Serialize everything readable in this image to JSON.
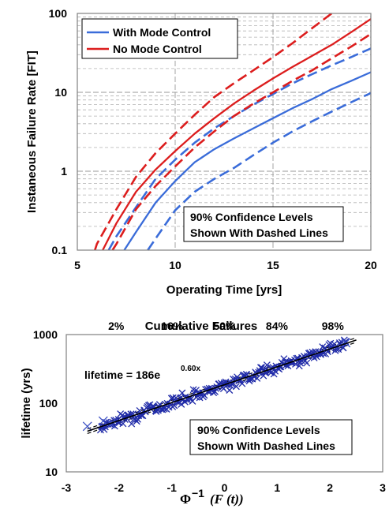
{
  "chart_data": [
    {
      "type": "line",
      "xlabel": "Operating Time [yrs]",
      "ylabel": "Instaneous Failure Rate [FIT]",
      "xlim": [
        5,
        20
      ],
      "ylim": [
        0.1,
        100
      ],
      "yscale": "log",
      "x_ticks": [
        "5",
        "10",
        "15",
        "20"
      ],
      "y_ticks": [
        "0.1",
        "1",
        "10",
        "100"
      ],
      "grid": true,
      "legend_position": "top-left",
      "annotation": [
        "90% Confidence Levels",
        "Shown With Dashed Lines"
      ],
      "series": [
        {
          "name": "With Mode Control",
          "color": "#3a6cd9",
          "style": "solid",
          "x": [
            7.4,
            8,
            9,
            10,
            11,
            12,
            13,
            14,
            15,
            16,
            17,
            18,
            19,
            20
          ],
          "y": [
            0.1,
            0.17,
            0.4,
            0.75,
            1.3,
            1.9,
            2.6,
            3.5,
            4.7,
            6.3,
            8.2,
            11,
            14,
            18
          ]
        },
        {
          "name": "With Mode Control upper 90% bound",
          "color": "#3a6cd9",
          "style": "dashed",
          "x": [
            6.6,
            7,
            8,
            9,
            10,
            11,
            12,
            13,
            14,
            15,
            16,
            17,
            18,
            19,
            20
          ],
          "y": [
            0.1,
            0.15,
            0.35,
            0.8,
            1.4,
            2.3,
            3.5,
            5,
            7,
            9.5,
            13,
            17,
            22,
            28,
            36
          ]
        },
        {
          "name": "With Mode Control lower 90% bound",
          "color": "#3a6cd9",
          "style": "dashed",
          "x": [
            8.6,
            9,
            10,
            11,
            12,
            13,
            14,
            15,
            16,
            17,
            18,
            19,
            20
          ],
          "y": [
            0.1,
            0.14,
            0.32,
            0.55,
            0.8,
            1.1,
            1.6,
            2.3,
            3.2,
            4.3,
            5.7,
            7.5,
            9.8
          ]
        },
        {
          "name": "No Mode Control",
          "color": "#dc1d1d",
          "style": "solid",
          "x": [
            6.3,
            7,
            8,
            9,
            10,
            11,
            12,
            13,
            14,
            15,
            16,
            17,
            18,
            19,
            20
          ],
          "y": [
            0.1,
            0.22,
            0.55,
            1.05,
            1.8,
            3,
            4.7,
            7.2,
            10.5,
            15,
            21,
            29,
            40,
            58,
            85
          ]
        },
        {
          "name": "No Mode Control upper 90% bound",
          "color": "#dc1d1d",
          "style": "dashed",
          "x": [
            5.9,
            6,
            7,
            8,
            9,
            10,
            11,
            12,
            13,
            14,
            15,
            16,
            17,
            18
          ],
          "y": [
            0.1,
            0.12,
            0.33,
            0.85,
            1.7,
            3,
            5.2,
            8.7,
            13,
            19,
            28,
            42,
            65,
            100
          ]
        },
        {
          "name": "No Mode Control lower 90% bound",
          "color": "#dc1d1d",
          "style": "dashed",
          "x": [
            6.8,
            7,
            8,
            9,
            10,
            11,
            12,
            13,
            14,
            15,
            16,
            17,
            18,
            19,
            20
          ],
          "y": [
            0.1,
            0.12,
            0.33,
            0.65,
            1.15,
            2,
            3.2,
            5,
            7.2,
            10,
            14,
            19,
            27,
            38,
            55
          ]
        }
      ]
    },
    {
      "type": "scatter",
      "xlabel_symbol": "Φ",
      "xlabel_superscript": "−1",
      "xlabel_arg": "(F (t))",
      "ylabel": "lifetime (yrs)",
      "top_axis_label": "Cumulative Failures",
      "top_ticks": [
        {
          "label": "2%",
          "x": -2.054
        },
        {
          "label": "16%",
          "x": -0.994
        },
        {
          "label": "50%",
          "x": 0
        },
        {
          "label": "84%",
          "x": 0.994
        },
        {
          "label": "98%",
          "x": 2.054
        }
      ],
      "xlim": [
        -3,
        3
      ],
      "ylim": [
        10,
        1000
      ],
      "yscale": "log",
      "x_ticks": [
        "-3",
        "-2",
        "-1",
        "0",
        "1",
        "2",
        "3"
      ],
      "y_ticks": [
        "10",
        "100",
        "1000"
      ],
      "equation": {
        "base": "lifetime = 186e",
        "exponent": "0.60x"
      },
      "fit": {
        "a": 186,
        "b": 0.6,
        "x": [
          -2.6,
          2.5
        ]
      },
      "confidence_band_factor": 1.08,
      "sample_points": {
        "x_range": [
          -2.35,
          2.3
        ],
        "count": 220,
        "scatter_sigma": 0.09,
        "marker_color": "#1f2aa8"
      },
      "outliers": [
        {
          "x": -2.6,
          "y": 46
        },
        {
          "x": -2.3,
          "y": 55
        },
        {
          "x": -2.15,
          "y": 50
        },
        {
          "x": 2.3,
          "y": 760
        }
      ],
      "annotation": [
        "90% Confidence Levels",
        "Shown With Dashed Lines"
      ]
    }
  ]
}
